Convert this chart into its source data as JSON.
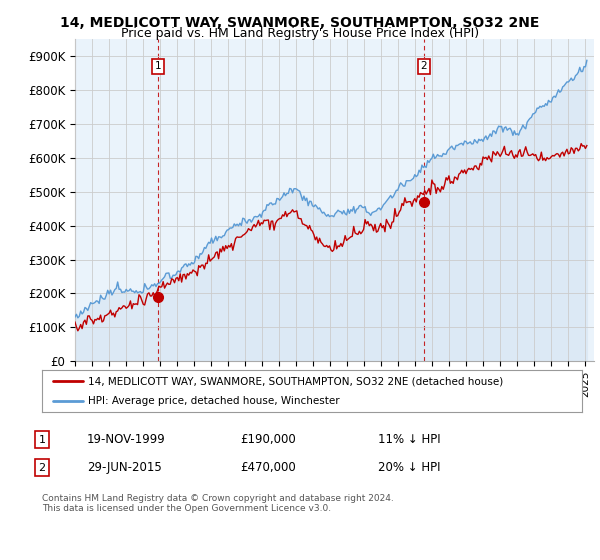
{
  "title": "14, MEDLICOTT WAY, SWANMORE, SOUTHAMPTON, SO32 2NE",
  "subtitle": "Price paid vs. HM Land Registry's House Price Index (HPI)",
  "ylim": [
    0,
    950000
  ],
  "yticks": [
    0,
    100000,
    200000,
    300000,
    400000,
    500000,
    600000,
    700000,
    800000,
    900000
  ],
  "ytick_labels": [
    "£0",
    "£100K",
    "£200K",
    "£300K",
    "£400K",
    "£500K",
    "£600K",
    "£700K",
    "£800K",
    "£900K"
  ],
  "xlim_start": 1995.0,
  "xlim_end": 2025.5,
  "hpi_color": "#5b9bd5",
  "hpi_fill_color": "#dce9f5",
  "price_color": "#c00000",
  "marker1_x": 1999.89,
  "marker1_y": 190000,
  "marker1_label": "1",
  "marker2_x": 2015.49,
  "marker2_y": 470000,
  "marker2_label": "2",
  "legend_line1": "14, MEDLICOTT WAY, SWANMORE, SOUTHAMPTON, SO32 2NE (detached house)",
  "legend_line2": "HPI: Average price, detached house, Winchester",
  "table_row1": [
    "1",
    "19-NOV-1999",
    "£190,000",
    "11% ↓ HPI"
  ],
  "table_row2": [
    "2",
    "29-JUN-2015",
    "£470,000",
    "20% ↓ HPI"
  ],
  "footer": "Contains HM Land Registry data © Crown copyright and database right 2024.\nThis data is licensed under the Open Government Licence v3.0.",
  "background_color": "#ffffff",
  "plot_bg_color": "#eaf3fb",
  "grid_color": "#cccccc",
  "title_fontsize": 10,
  "subtitle_fontsize": 9
}
